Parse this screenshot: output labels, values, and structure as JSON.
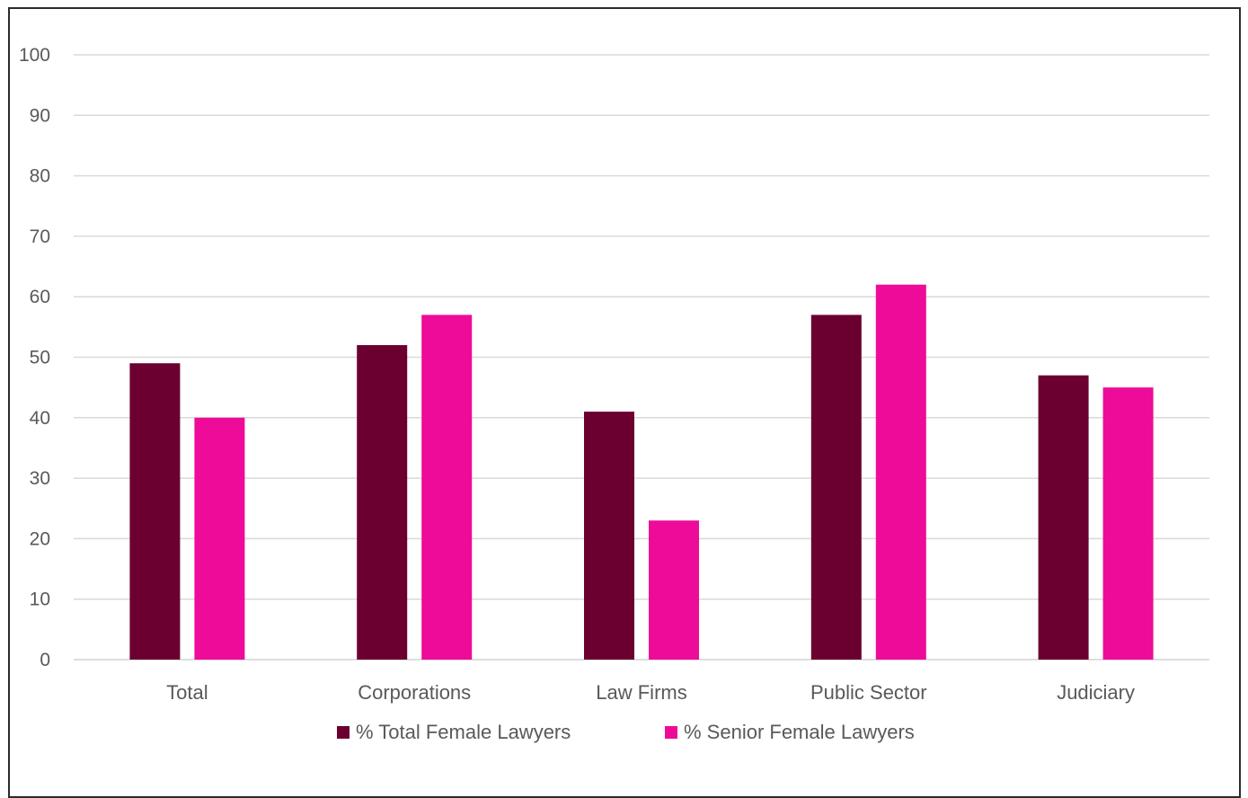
{
  "chart_data": {
    "type": "bar",
    "categories": [
      "Total",
      "Corporations",
      "Law Firms",
      "Public Sector",
      "Judiciary"
    ],
    "series": [
      {
        "name": "% Total Female Lawyers",
        "values": [
          49,
          52,
          41,
          57,
          47
        ],
        "color": "#6b0030"
      },
      {
        "name": "% Senior Female Lawyers",
        "values": [
          40,
          57,
          23,
          62,
          45
        ],
        "color": "#ee0b9a"
      }
    ],
    "title": "",
    "xlabel": "",
    "ylabel": "",
    "ylim": [
      0,
      100
    ],
    "yticks": [
      0,
      10,
      20,
      30,
      40,
      50,
      60,
      70,
      80,
      90,
      100
    ],
    "grid": true,
    "legend_position": "bottom"
  }
}
